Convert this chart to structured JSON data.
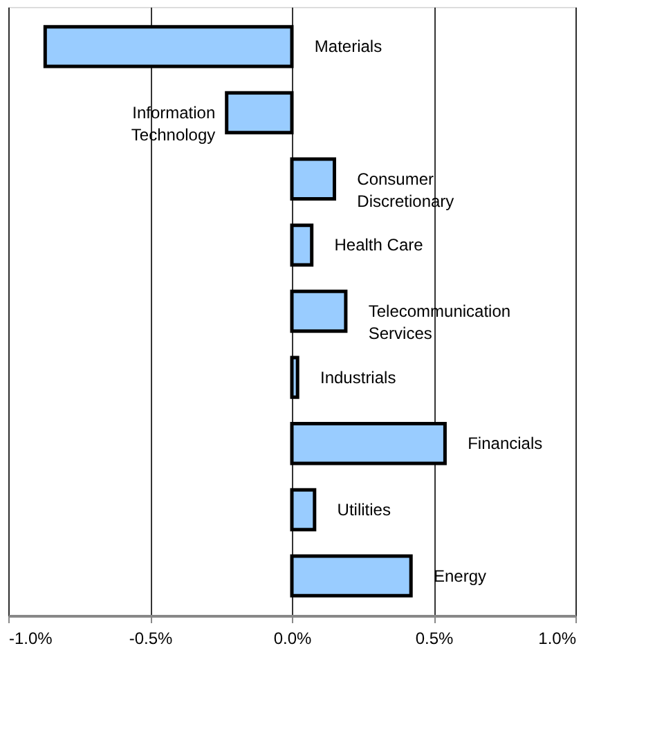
{
  "chart_data": {
    "type": "bar",
    "orientation": "horizontal",
    "categories": [
      "Materials",
      "Information Technology",
      "Consumer Discretionary",
      "Health Care",
      "Telecommunication Services",
      "Industrials",
      "Financials",
      "Utilities",
      "Energy"
    ],
    "values": [
      -0.87,
      -0.23,
      0.15,
      0.07,
      0.19,
      0.02,
      0.54,
      0.08,
      0.42
    ],
    "color": "#99ccff",
    "xlim": [
      -1.0,
      1.0
    ],
    "xticks": [
      {
        "value": -1.0,
        "label": "-1.0%"
      },
      {
        "value": -0.5,
        "label": "-0.5%"
      },
      {
        "value": 0.0,
        "label": "0.0%"
      },
      {
        "value": 0.5,
        "label": "0.5%"
      },
      {
        "value": 1.0,
        "label": "1.0%"
      }
    ],
    "grid": "x",
    "tick_labels": "x"
  }
}
